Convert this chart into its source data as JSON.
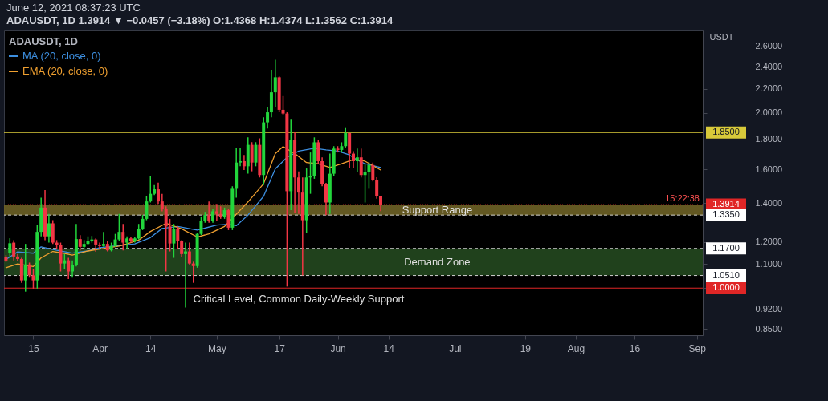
{
  "chart_data": {
    "type": "candlestick",
    "title": "ADAUSDT, 1D",
    "subtitle": "ADAUSDT, 1D 1.3914 ▼ −0.0457 (−3.18%) O:1.4368 H:1.4374 L:1.3562 C:1.3914",
    "ylabel": "USDT",
    "annotations": [
      "June 12, 2021 08:37:23 UTC",
      {
        "text": "15:22:38",
        "y": 1.3914
      },
      {
        "text": "Critical Level, Common Daily-Weekly Support",
        "x": "2021-05-22",
        "y": 1.0
      }
    ],
    "x": [
      "2021-03-08",
      "2021-03-09",
      "2021-03-10",
      "2021-03-11",
      "2021-03-12",
      "2021-03-13",
      "2021-03-14",
      "2021-03-15",
      "2021-03-16",
      "2021-03-17",
      "2021-03-18",
      "2021-03-19",
      "2021-03-20",
      "2021-03-21",
      "2021-03-22",
      "2021-03-23",
      "2021-03-24",
      "2021-03-25",
      "2021-03-26",
      "2021-03-27",
      "2021-03-28",
      "2021-03-29",
      "2021-03-30",
      "2021-03-31",
      "2021-04-01",
      "2021-04-02",
      "2021-04-03",
      "2021-04-04",
      "2021-04-05",
      "2021-04-06",
      "2021-04-07",
      "2021-04-08",
      "2021-04-09",
      "2021-04-10",
      "2021-04-11",
      "2021-04-12",
      "2021-04-13",
      "2021-04-14",
      "2021-04-15",
      "2021-04-16",
      "2021-04-17",
      "2021-04-18",
      "2021-04-19",
      "2021-04-20",
      "2021-04-21",
      "2021-04-22",
      "2021-04-23",
      "2021-04-24",
      "2021-04-25",
      "2021-04-26",
      "2021-04-27",
      "2021-04-28",
      "2021-04-29",
      "2021-04-30",
      "2021-05-01",
      "2021-05-02",
      "2021-05-03",
      "2021-05-04",
      "2021-05-05",
      "2021-05-06",
      "2021-05-07",
      "2021-05-08",
      "2021-05-09",
      "2021-05-10",
      "2021-05-11",
      "2021-05-12",
      "2021-05-13",
      "2021-05-14",
      "2021-05-15",
      "2021-05-16",
      "2021-05-17",
      "2021-05-18",
      "2021-05-19",
      "2021-05-20",
      "2021-05-21",
      "2021-05-22",
      "2021-05-23",
      "2021-05-24",
      "2021-05-25",
      "2021-05-26",
      "2021-05-27",
      "2021-05-28",
      "2021-05-29",
      "2021-05-30",
      "2021-05-31",
      "2021-06-01",
      "2021-06-02",
      "2021-06-03",
      "2021-06-04",
      "2021-06-05",
      "2021-06-06",
      "2021-06-07",
      "2021-06-08",
      "2021-06-09",
      "2021-06-10",
      "2021-06-11",
      "2021-06-12"
    ],
    "ohlc": [
      [
        1.131,
        1.139,
        1.109,
        1.115
      ],
      [
        1.148,
        1.218,
        1.131,
        1.194
      ],
      [
        1.197,
        1.209,
        1.116,
        1.133
      ],
      [
        1.133,
        1.144,
        1.111,
        1.122
      ],
      [
        1.122,
        1.127,
        1.021,
        1.031
      ],
      [
        1.031,
        1.191,
        0.986,
        1.098
      ],
      [
        1.098,
        1.106,
        1.042,
        1.052
      ],
      [
        1.052,
        1.078,
        0.998,
        1.031
      ],
      [
        1.031,
        1.283,
        0.998,
        1.249
      ],
      [
        1.249,
        1.43,
        1.227,
        1.375
      ],
      [
        1.375,
        1.474,
        1.209,
        1.227
      ],
      [
        1.227,
        1.341,
        1.197,
        1.292
      ],
      [
        1.292,
        1.308,
        1.191,
        1.197
      ],
      [
        1.197,
        1.209,
        1.167,
        1.185
      ],
      [
        1.185,
        1.197,
        1.068,
        1.102
      ],
      [
        1.102,
        1.144,
        1.078,
        1.116
      ],
      [
        1.116,
        1.127,
        1.036,
        1.068
      ],
      [
        1.068,
        1.116,
        1.042,
        1.094
      ],
      [
        1.094,
        1.289,
        1.089,
        1.214
      ],
      [
        1.214,
        1.233,
        1.161,
        1.177
      ],
      [
        1.177,
        1.209,
        1.167,
        1.191
      ],
      [
        1.191,
        1.227,
        1.185,
        1.203
      ],
      [
        1.203,
        1.229,
        1.197,
        1.212
      ],
      [
        1.212,
        1.217,
        1.154,
        1.188
      ],
      [
        1.188,
        1.197,
        1.167,
        1.181
      ],
      [
        1.181,
        1.249,
        1.177,
        1.191
      ],
      [
        1.191,
        1.203,
        1.156,
        1.161
      ],
      [
        1.161,
        1.197,
        1.156,
        1.181
      ],
      [
        1.181,
        1.239,
        1.177,
        1.212
      ],
      [
        1.212,
        1.341,
        1.205,
        1.249
      ],
      [
        1.249,
        1.289,
        1.161,
        1.197
      ],
      [
        1.197,
        1.227,
        1.17,
        1.217
      ],
      [
        1.217,
        1.222,
        1.197,
        1.203
      ],
      [
        1.203,
        1.224,
        1.197,
        1.217
      ],
      [
        1.217,
        1.289,
        1.212,
        1.264
      ],
      [
        1.264,
        1.335,
        1.258,
        1.315
      ],
      [
        1.315,
        1.438,
        1.308,
        1.409
      ],
      [
        1.409,
        1.556,
        1.403,
        1.452
      ],
      [
        1.452,
        1.503,
        1.445,
        1.478
      ],
      [
        1.478,
        1.518,
        1.395,
        1.409
      ],
      [
        1.409,
        1.452,
        1.355,
        1.366
      ],
      [
        1.366,
        1.382,
        1.068,
        1.276
      ],
      [
        1.276,
        1.315,
        1.156,
        1.193
      ],
      [
        1.193,
        1.289,
        1.127,
        1.264
      ],
      [
        1.264,
        1.276,
        1.167,
        1.203
      ],
      [
        1.203,
        1.209,
        1.133,
        1.144
      ],
      [
        1.144,
        1.197,
        0.926,
        1.156
      ],
      [
        1.156,
        1.197,
        1.098,
        1.102
      ],
      [
        1.102,
        1.11,
        1.021,
        1.091
      ],
      [
        1.091,
        1.245,
        1.084,
        1.239
      ],
      [
        1.239,
        1.328,
        1.233,
        1.304
      ],
      [
        1.304,
        1.352,
        1.295,
        1.335
      ],
      [
        1.335,
        1.409,
        1.295,
        1.304
      ],
      [
        1.304,
        1.368,
        1.295,
        1.355
      ],
      [
        1.355,
        1.395,
        1.302,
        1.341
      ],
      [
        1.341,
        1.382,
        1.315,
        1.325
      ],
      [
        1.325,
        1.375,
        1.315,
        1.361
      ],
      [
        1.361,
        1.368,
        1.258,
        1.27
      ],
      [
        1.27,
        1.496,
        1.258,
        1.481
      ],
      [
        1.481,
        1.744,
        1.43,
        1.643
      ],
      [
        1.643,
        1.744,
        1.619,
        1.652
      ],
      [
        1.652,
        1.693,
        1.595,
        1.619
      ],
      [
        1.619,
        1.815,
        1.572,
        1.762
      ],
      [
        1.762,
        1.781,
        1.587,
        1.643
      ],
      [
        1.643,
        1.781,
        1.619,
        1.762
      ],
      [
        1.762,
        1.808,
        1.549,
        1.564
      ],
      [
        1.564,
        1.965,
        1.503,
        1.926
      ],
      [
        1.926,
        2.044,
        1.879,
        2.004
      ],
      [
        2.004,
        2.372,
        1.965,
        2.169
      ],
      [
        2.169,
        2.468,
        2.044,
        2.302
      ],
      [
        2.302,
        2.31,
        2.004,
        2.024
      ],
      [
        2.024,
        2.137,
        1.984,
        1.994
      ],
      [
        1.994,
        2.004,
        1.006,
        1.467
      ],
      [
        1.467,
        1.946,
        1.361,
        1.797
      ],
      [
        1.797,
        1.851,
        1.348,
        1.549
      ],
      [
        1.549,
        1.587,
        1.341,
        1.459
      ],
      [
        1.459,
        1.549,
        1.051,
        1.308
      ],
      [
        1.308,
        1.605,
        1.245,
        1.549
      ],
      [
        1.549,
        1.71,
        1.452,
        1.556
      ],
      [
        1.556,
        1.815,
        1.541,
        1.78
      ],
      [
        1.78,
        1.797,
        1.635,
        1.652
      ],
      [
        1.652,
        1.677,
        1.496,
        1.511
      ],
      [
        1.511,
        1.516,
        1.335,
        1.403
      ],
      [
        1.403,
        1.702,
        1.341,
        1.572
      ],
      [
        1.572,
        1.753,
        1.556,
        1.736
      ],
      [
        1.736,
        1.753,
        1.71,
        1.727
      ],
      [
        1.727,
        1.78,
        1.71,
        1.753
      ],
      [
        1.753,
        1.889,
        1.744,
        1.846
      ],
      [
        1.846,
        1.846,
        1.611,
        1.702
      ],
      [
        1.702,
        1.719,
        1.605,
        1.652
      ],
      [
        1.652,
        1.736,
        1.581,
        1.677
      ],
      [
        1.677,
        1.736,
        1.549,
        1.564
      ],
      [
        1.564,
        1.635,
        1.403,
        1.584
      ],
      [
        1.584,
        1.643,
        1.481,
        1.627
      ],
      [
        1.627,
        1.643,
        1.525,
        1.533
      ],
      [
        1.533,
        1.55,
        1.424,
        1.4368
      ],
      [
        1.4368,
        1.4374,
        1.3562,
        1.3914
      ]
    ],
    "colors": [
      "#f23645",
      "#22d63c",
      "#f23645",
      "#f23645",
      "#f23645",
      "#22d63c",
      "#f23645",
      "#f23645",
      "#22d63c",
      "#22d63c",
      "#f23645",
      "#22d63c",
      "#f23645",
      "#f23645",
      "#f23645",
      "#22d63c",
      "#f23645",
      "#22d63c",
      "#22d63c",
      "#f23645",
      "#22d63c",
      "#22d63c",
      "#22d63c",
      "#f23645",
      "#f23645",
      "#22d63c",
      "#f23645",
      "#22d63c",
      "#22d63c",
      "#22d63c",
      "#f23645",
      "#22d63c",
      "#f23645",
      "#22d63c",
      "#22d63c",
      "#22d63c",
      "#22d63c",
      "#22d63c",
      "#22d63c",
      "#f23645",
      "#f23645",
      "#f23645",
      "#f23645",
      "#22d63c",
      "#f23645",
      "#f23645",
      "#22d63c",
      "#f23645",
      "#f23645",
      "#22d63c",
      "#22d63c",
      "#22d63c",
      "#f23645",
      "#22d63c",
      "#f23645",
      "#f23645",
      "#22d63c",
      "#f23645",
      "#22d63c",
      "#22d63c",
      "#22d63c",
      "#f23645",
      "#22d63c",
      "#f23645",
      "#22d63c",
      "#f23645",
      "#22d63c",
      "#22d63c",
      "#22d63c",
      "#22d63c",
      "#f23645",
      "#f23645",
      "#f23645",
      "#22d63c",
      "#f23645",
      "#f23645",
      "#f23645",
      "#22d63c",
      "#22d63c",
      "#22d63c",
      "#f23645",
      "#f23645",
      "#f23645",
      "#22d63c",
      "#22d63c",
      "#f23645",
      "#22d63c",
      "#22d63c",
      "#f23645",
      "#f23645",
      "#22d63c",
      "#f23645",
      "#22d63c",
      "#22d63c",
      "#f23645",
      "#f23645",
      "#f23645"
    ],
    "series": [
      {
        "name": "MA (20, close, 0)",
        "type": "line",
        "color": "#3d8fe0",
        "x": [
          "2021-03-08",
          "2021-03-11",
          "2021-03-15",
          "2021-03-17",
          "2021-03-21",
          "2021-03-25",
          "2021-03-29",
          "2021-04-01",
          "2021-04-06",
          "2021-04-10",
          "2021-04-14",
          "2021-04-17",
          "2021-04-21",
          "2021-04-26",
          "2021-05-01",
          "2021-05-04",
          "2021-05-06",
          "2021-05-09",
          "2021-05-13",
          "2021-05-16",
          "2021-05-19",
          "2021-05-22",
          "2021-05-26",
          "2021-05-29",
          "2021-06-01",
          "2021-06-04",
          "2021-06-06",
          "2021-06-08",
          "2021-06-12"
        ],
        "values": [
          1.12,
          1.154,
          1.148,
          1.177,
          1.161,
          1.148,
          1.158,
          1.173,
          1.183,
          1.191,
          1.221,
          1.266,
          1.276,
          1.258,
          1.283,
          1.287,
          1.28,
          1.335,
          1.438,
          1.603,
          1.677,
          1.719,
          1.739,
          1.727,
          1.719,
          1.693,
          1.66,
          1.635,
          1.611
        ]
      },
      {
        "name": "EMA (20, close, 0)",
        "type": "line",
        "color": "#f0a030",
        "x": [
          "2021-03-08",
          "2021-03-11",
          "2021-03-15",
          "2021-03-17",
          "2021-03-20",
          "2021-03-23",
          "2021-03-25",
          "2021-03-29",
          "2021-04-01",
          "2021-04-06",
          "2021-04-08",
          "2021-04-11",
          "2021-04-14",
          "2021-04-18",
          "2021-04-22",
          "2021-04-26",
          "2021-04-29",
          "2021-05-03",
          "2021-05-09",
          "2021-05-13",
          "2021-05-16",
          "2021-05-18",
          "2021-05-21",
          "2021-05-24",
          "2021-05-27",
          "2021-05-30",
          "2021-06-02",
          "2021-06-05",
          "2021-06-08",
          "2021-06-12"
        ],
        "values": [
          1.084,
          1.1,
          1.089,
          1.127,
          1.156,
          1.147,
          1.139,
          1.158,
          1.167,
          1.181,
          1.191,
          1.209,
          1.251,
          1.292,
          1.264,
          1.224,
          1.239,
          1.276,
          1.406,
          1.511,
          1.702,
          1.75,
          1.702,
          1.643,
          1.635,
          1.611,
          1.635,
          1.663,
          1.652,
          1.595
        ]
      }
    ],
    "xlim": [
      "2021-03-07T12:00",
      "2021-09-02T12:00"
    ],
    "xticks": [
      {
        "value": "2021-03-15",
        "label": "15"
      },
      {
        "value": "2021-04-01",
        "label": "Apr"
      },
      {
        "value": "2021-04-14",
        "label": "14"
      },
      {
        "value": "2021-05-01",
        "label": "May"
      },
      {
        "value": "2021-05-17",
        "label": "17"
      },
      {
        "value": "2021-06-01",
        "label": "Jun"
      },
      {
        "value": "2021-06-14",
        "label": "14"
      },
      {
        "value": "2021-07-01",
        "label": "Jul"
      },
      {
        "value": "2021-07-19",
        "label": "19"
      },
      {
        "value": "2021-08-01",
        "label": "Aug"
      },
      {
        "value": "2021-08-16",
        "label": "16"
      },
      {
        "value": "2021-09-01",
        "label": "Sep"
      }
    ],
    "ylim": [
      0.83,
      2.77
    ],
    "yticks": [
      {
        "value": 0.85,
        "label": "0.8500"
      },
      {
        "value": 0.92,
        "label": "0.9200"
      },
      {
        "value": 1.0,
        "label": null
      },
      {
        "value": 1.1,
        "label": "1.1000"
      },
      {
        "value": 1.2,
        "label": "1.2000"
      },
      {
        "value": 1.4,
        "label": "1.4000"
      },
      {
        "value": 1.6,
        "label": "1.6000"
      },
      {
        "value": 1.8,
        "label": "1.8000"
      },
      {
        "value": 2.0,
        "label": "2.0000"
      },
      {
        "value": 2.2,
        "label": "2.2000"
      },
      {
        "value": 2.4,
        "label": "2.4000"
      },
      {
        "value": 2.6,
        "label": "2.6000"
      }
    ],
    "log": true,
    "legend": "top left",
    "ref_lines": [
      {
        "axis": "y",
        "value": 1.85,
        "label": "1.8500",
        "color": "#d8c93a",
        "line_style": "solid"
      },
      {
        "axis": "y",
        "value": 1.3914,
        "label": "1.3914",
        "color": "#e02626",
        "line_style": "dotted"
      },
      {
        "axis": "y",
        "value": 1.335,
        "label": "1.3350",
        "color": "#d0d0d0",
        "line_style": "dashed"
      },
      {
        "axis": "y",
        "value": 1.17,
        "label": "1.1700",
        "color": "#d0d0d0",
        "line_style": "dashed"
      },
      {
        "axis": "y",
        "value": 1.051,
        "label": "1.0510",
        "color": "#d0d0d0",
        "line_style": "dashed"
      },
      {
        "axis": "y",
        "value": 1.0,
        "label": "1.0000",
        "color": "#e02626",
        "line_style": "solid"
      }
    ],
    "bands": [
      {
        "axis": "y",
        "from": 1.335,
        "to": 1.3914,
        "label": "Support Range",
        "color": "#6e6226"
      },
      {
        "axis": "y",
        "from": 1.051,
        "to": 1.17,
        "label": "Demand Zone",
        "color": "#24481f"
      }
    ]
  }
}
